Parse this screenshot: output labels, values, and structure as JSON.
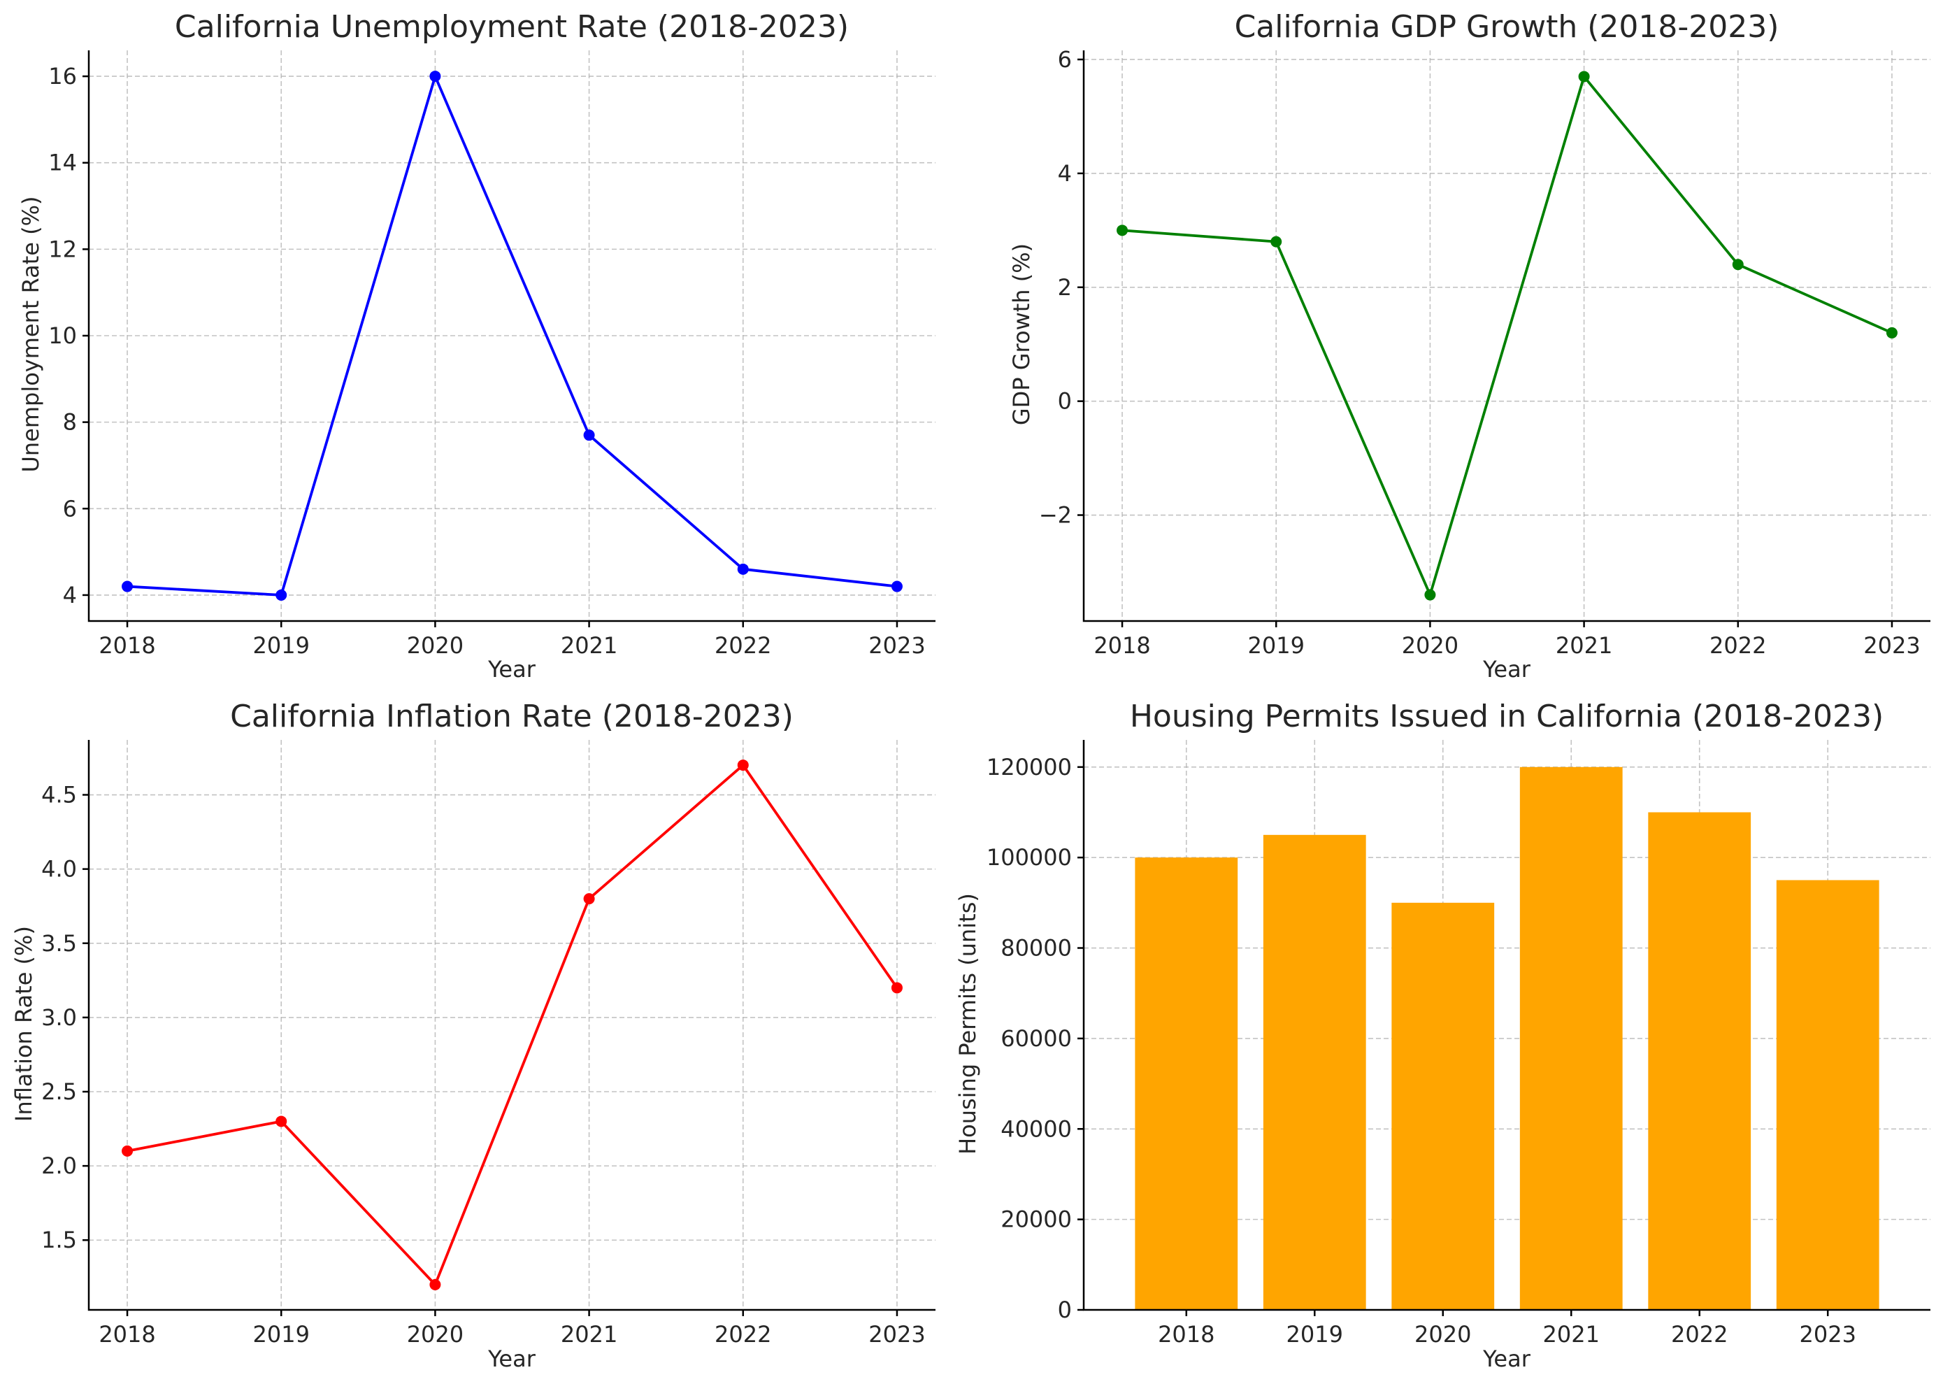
{
  "chart_data": [
    {
      "type": "line",
      "title": "California Unemployment Rate (2018-2023)",
      "xlabel": "Year",
      "ylabel": "Unemployment Rate (%)",
      "categories": [
        "2018",
        "2019",
        "2020",
        "2021",
        "2022",
        "2023"
      ],
      "series": [
        {
          "values": [
            4.2,
            4.0,
            16.0,
            7.7,
            4.6,
            4.2
          ],
          "color": "#0000ff"
        }
      ],
      "ylim": [
        3.4,
        16.6
      ],
      "yticks": [
        4,
        6,
        8,
        10,
        12,
        14,
        16
      ],
      "ytick_labels": [
        "4",
        "6",
        "8",
        "10",
        "12",
        "14",
        "16"
      ],
      "grid": true,
      "markers": true
    },
    {
      "type": "line",
      "title": "California GDP Growth (2018-2023)",
      "xlabel": "Year",
      "ylabel": "GDP Growth (%)",
      "categories": [
        "2018",
        "2019",
        "2020",
        "2021",
        "2022",
        "2023"
      ],
      "series": [
        {
          "values": [
            3.0,
            2.8,
            -3.4,
            5.7,
            2.4,
            1.2
          ],
          "color": "#008000"
        }
      ],
      "ylim": [
        -3.86,
        6.16
      ],
      "yticks": [
        -2,
        0,
        2,
        4,
        6
      ],
      "ytick_labels": [
        "−2",
        "0",
        "2",
        "4",
        "6"
      ],
      "grid": true,
      "markers": true
    },
    {
      "type": "line",
      "title": "California Inflation Rate (2018-2023)",
      "xlabel": "Year",
      "ylabel": "Inflation Rate (%)",
      "categories": [
        "2018",
        "2019",
        "2020",
        "2021",
        "2022",
        "2023"
      ],
      "series": [
        {
          "values": [
            2.1,
            2.3,
            1.2,
            3.8,
            4.7,
            3.2
          ],
          "color": "#ff0000"
        }
      ],
      "ylim": [
        1.03,
        4.87
      ],
      "yticks": [
        1.5,
        2.0,
        2.5,
        3.0,
        3.5,
        4.0,
        4.5
      ],
      "ytick_labels": [
        "1.5",
        "2.0",
        "2.5",
        "3.0",
        "3.5",
        "4.0",
        "4.5"
      ],
      "grid": true,
      "markers": true
    },
    {
      "type": "bar",
      "title": "Housing Permits Issued in California (2018-2023)",
      "xlabel": "Year",
      "ylabel": "Housing Permits (units)",
      "categories": [
        "2018",
        "2019",
        "2020",
        "2021",
        "2022",
        "2023"
      ],
      "series": [
        {
          "values": [
            100000,
            105000,
            90000,
            120000,
            110000,
            95000
          ],
          "color": "#ffa500"
        }
      ],
      "ylim": [
        0,
        126000
      ],
      "yticks": [
        0,
        20000,
        40000,
        60000,
        80000,
        100000,
        120000
      ],
      "ytick_labels": [
        "0",
        "20000",
        "40000",
        "60000",
        "80000",
        "100000",
        "120000"
      ],
      "grid": true
    }
  ]
}
